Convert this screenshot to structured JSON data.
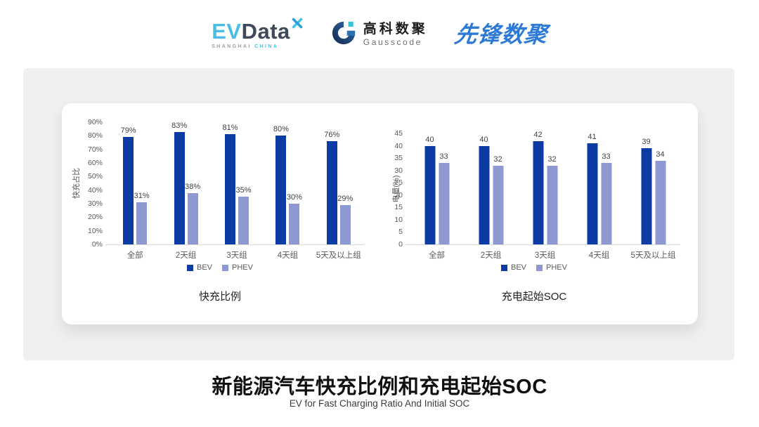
{
  "header": {
    "evdata": {
      "wordmark_ev": "EV",
      "wordmark_data": "Data",
      "sub_left": "SHANGHAI",
      "sub_right": "CHINA"
    },
    "gausscode": {
      "name_cn": "高科数聚",
      "name_en": "Gausscode"
    },
    "pioneer": {
      "name": "先锋数聚"
    }
  },
  "footer": {
    "title": "新能源汽车快充比例和充电起始SOC",
    "subtitle": "EV for Fast Charging Ratio And Initial SOC"
  },
  "colors": {
    "bev": "#0c3ba3",
    "phev": "#8e99d2",
    "evdata_lightblue": "#4bbfe3",
    "pioneer_blue": "#2c79d6",
    "panel_gray": "#f0f0f1",
    "axis_text": "#595959",
    "axis_line": "#d9d9d9"
  },
  "chart_data": [
    {
      "type": "bar",
      "title": "快充比例",
      "ylabel": "快充占比",
      "categories": [
        "全部",
        "2天组",
        "3天组",
        "4天组",
        "5天及以上组"
      ],
      "series": [
        {
          "name": "BEV",
          "color": "#0c3ba3",
          "values": [
            79,
            83,
            81,
            80,
            76
          ],
          "labels": [
            "79%",
            "83%",
            "81%",
            "80%",
            "76%"
          ]
        },
        {
          "name": "PHEV",
          "color": "#8e99d2",
          "values": [
            31,
            38,
            35,
            30,
            29
          ],
          "labels": [
            "31%",
            "38%",
            "35%",
            "30%",
            "29%"
          ]
        }
      ],
      "ylim": [
        0,
        90
      ],
      "ytick_step": 10,
      "ytick_suffix": "%",
      "legend_position": "bottom",
      "grid": false
    },
    {
      "type": "bar",
      "title": "充电起始SOC",
      "ylabel": "电量(%)",
      "categories": [
        "全部",
        "2天组",
        "3天组",
        "4天组",
        "5天及以上组"
      ],
      "series": [
        {
          "name": "BEV",
          "color": "#0c3ba3",
          "values": [
            40,
            40,
            42,
            41,
            39
          ],
          "labels": [
            "40",
            "40",
            "42",
            "41",
            "39"
          ]
        },
        {
          "name": "PHEV",
          "color": "#8e99d2",
          "values": [
            33,
            32,
            32,
            33,
            34
          ],
          "labels": [
            "33",
            "32",
            "32",
            "33",
            "34"
          ]
        }
      ],
      "ylim": [
        0,
        45
      ],
      "ytick_step": 5,
      "ytick_suffix": "",
      "legend_position": "bottom",
      "grid": false
    }
  ]
}
